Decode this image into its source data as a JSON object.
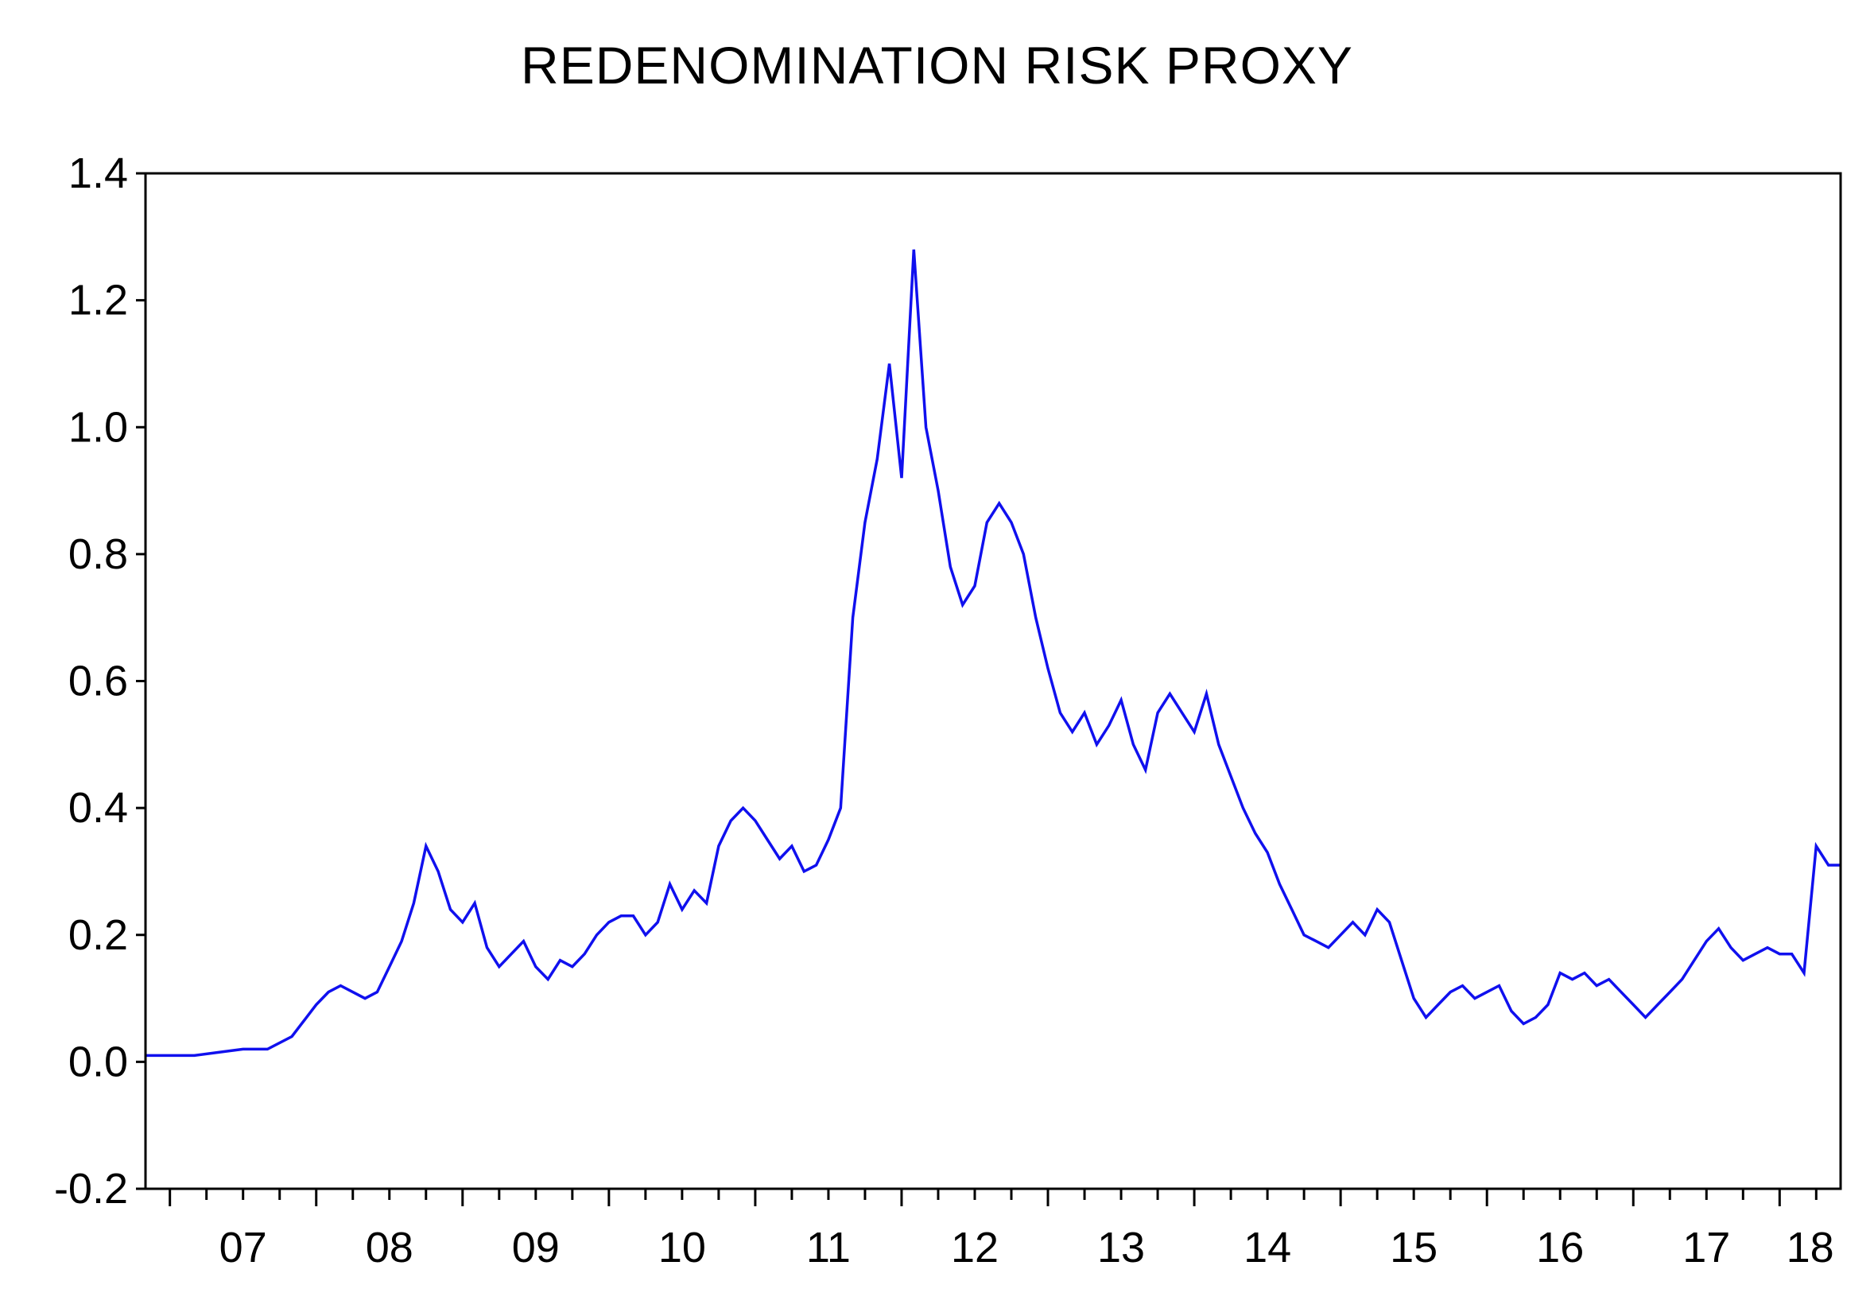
{
  "chart_data": {
    "type": "line",
    "title": "REDENOMINATION RISK PROXY",
    "xlabel": "",
    "ylabel": "",
    "ylim": [
      -0.2,
      1.4
    ],
    "yticks": [
      "-0.2",
      "0.0",
      "0.2",
      "0.4",
      "0.6",
      "0.8",
      "1.0",
      "1.2",
      "1.4"
    ],
    "xtick_labels": [
      "07",
      "08",
      "09",
      "10",
      "11",
      "12",
      "13",
      "14",
      "15",
      "16",
      "17",
      "18"
    ],
    "xlim": [
      "2006-11",
      "2018-06"
    ],
    "grid": false,
    "legend": "none",
    "line_color": "#1010ee",
    "series": [
      {
        "x": [
          "2006-11",
          "2007-01",
          "2007-03",
          "2007-05",
          "2007-07",
          "2007-09",
          "2007-11",
          "2008-01",
          "2008-02",
          "2008-03",
          "2008-04",
          "2008-05",
          "2008-06",
          "2008-07",
          "2008-08",
          "2008-09",
          "2008-10",
          "2008-11",
          "2008-12",
          "2009-01",
          "2009-02",
          "2009-03",
          "2009-04",
          "2009-05",
          "2009-06",
          "2009-07",
          "2009-08",
          "2009-09",
          "2009-10",
          "2009-11",
          "2009-12",
          "2010-01",
          "2010-02",
          "2010-03",
          "2010-04",
          "2010-05",
          "2010-06",
          "2010-07",
          "2010-08",
          "2010-09",
          "2010-10",
          "2010-11",
          "2010-12",
          "2011-01",
          "2011-02",
          "2011-03",
          "2011-04",
          "2011-05",
          "2011-06",
          "2011-07",
          "2011-08",
          "2011-09",
          "2011-10",
          "2011-11",
          "2011-12",
          "2012-01",
          "2012-02",
          "2012-03",
          "2012-04",
          "2012-05",
          "2012-06",
          "2012-07",
          "2012-08",
          "2012-09",
          "2012-10",
          "2012-11",
          "2012-12",
          "2013-01",
          "2013-02",
          "2013-03",
          "2013-04",
          "2013-05",
          "2013-06",
          "2013-07",
          "2013-08",
          "2013-09",
          "2013-10",
          "2013-11",
          "2013-12",
          "2014-01",
          "2014-02",
          "2014-03",
          "2014-04",
          "2014-05",
          "2014-06",
          "2014-07",
          "2014-08",
          "2014-09",
          "2014-10",
          "2014-11",
          "2014-12",
          "2015-01",
          "2015-02",
          "2015-03",
          "2015-04",
          "2015-05",
          "2015-06",
          "2015-07",
          "2015-08",
          "2015-09",
          "2015-10",
          "2015-11",
          "2015-12",
          "2016-01",
          "2016-02",
          "2016-03",
          "2016-04",
          "2016-05",
          "2016-06",
          "2016-07",
          "2016-08",
          "2016-09",
          "2016-10",
          "2016-11",
          "2016-12",
          "2017-01",
          "2017-02",
          "2017-03",
          "2017-04",
          "2017-05",
          "2017-06",
          "2017-07",
          "2017-08",
          "2017-09",
          "2017-10",
          "2017-11",
          "2017-12",
          "2018-01",
          "2018-02",
          "2018-03",
          "2018-04",
          "2018-05",
          "2018-06"
        ],
        "y": [
          0.01,
          0.01,
          0.01,
          0.015,
          0.02,
          0.02,
          0.04,
          0.09,
          0.11,
          0.12,
          0.11,
          0.1,
          0.11,
          0.15,
          0.19,
          0.25,
          0.34,
          0.3,
          0.24,
          0.22,
          0.25,
          0.18,
          0.15,
          0.17,
          0.19,
          0.15,
          0.13,
          0.16,
          0.15,
          0.17,
          0.2,
          0.22,
          0.23,
          0.23,
          0.2,
          0.22,
          0.28,
          0.24,
          0.27,
          0.25,
          0.34,
          0.38,
          0.4,
          0.38,
          0.35,
          0.32,
          0.34,
          0.3,
          0.31,
          0.35,
          0.4,
          0.7,
          0.85,
          0.95,
          1.1,
          0.92,
          1.28,
          1.0,
          0.9,
          0.78,
          0.72,
          0.75,
          0.85,
          0.88,
          0.85,
          0.8,
          0.7,
          0.62,
          0.55,
          0.52,
          0.55,
          0.5,
          0.53,
          0.57,
          0.5,
          0.46,
          0.55,
          0.58,
          0.55,
          0.52,
          0.58,
          0.5,
          0.45,
          0.4,
          0.36,
          0.33,
          0.28,
          0.24,
          0.2,
          0.19,
          0.18,
          0.2,
          0.22,
          0.2,
          0.24,
          0.22,
          0.16,
          0.1,
          0.07,
          0.09,
          0.11,
          0.12,
          0.1,
          0.11,
          0.12,
          0.08,
          0.06,
          0.07,
          0.09,
          0.14,
          0.13,
          0.14,
          0.12,
          0.13,
          0.11,
          0.09,
          0.07,
          0.09,
          0.11,
          0.13,
          0.16,
          0.19,
          0.21,
          0.18,
          0.16,
          0.17,
          0.18,
          0.17,
          0.17,
          0.14,
          0.34,
          0.31,
          0.31
        ]
      }
    ]
  }
}
